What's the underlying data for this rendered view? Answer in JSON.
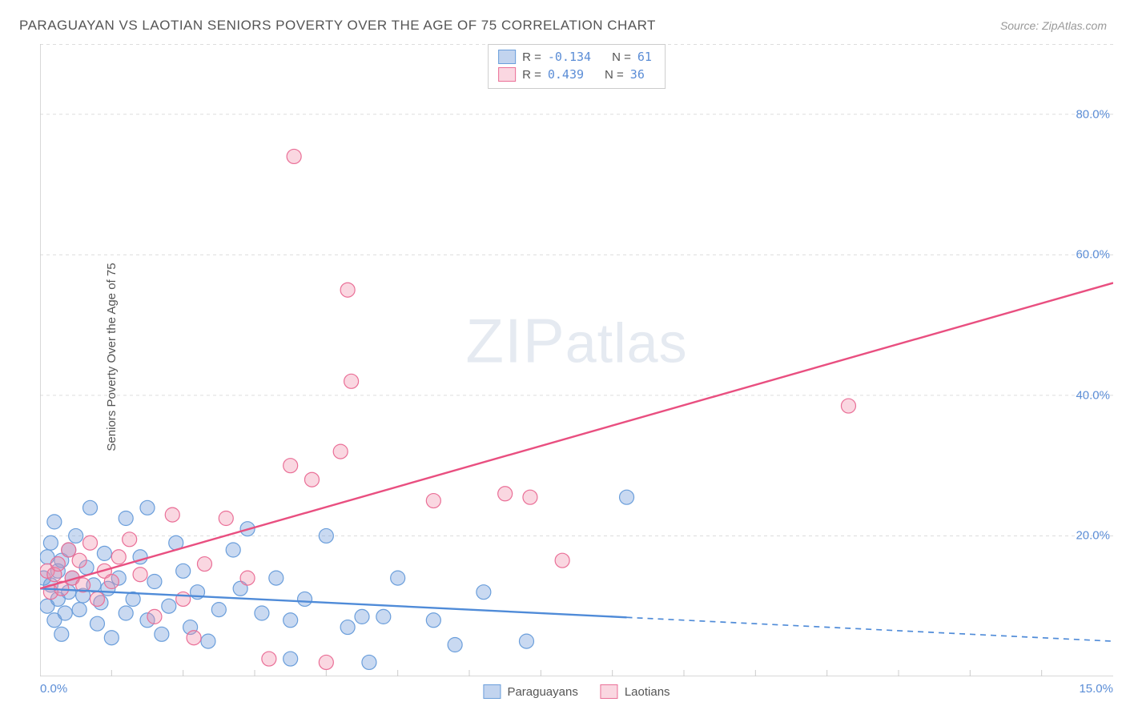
{
  "title": "PARAGUAYAN VS LAOTIAN SENIORS POVERTY OVER THE AGE OF 75 CORRELATION CHART",
  "source_prefix": "Source: ",
  "source_name": "ZipAtlas.com",
  "watermark_a": "ZIP",
  "watermark_b": "atlas",
  "ylabel": "Seniors Poverty Over the Age of 75",
  "chart": {
    "type": "scatter",
    "xlim": [
      0,
      15
    ],
    "ylim": [
      0,
      90
    ],
    "xtick_labels": {
      "0": "0.0%",
      "15": "15.0%"
    },
    "ytick_labels": {
      "20": "20.0%",
      "40": "40.0%",
      "60": "60.0%",
      "80": "80.0%"
    },
    "grid_color": "#dddddd",
    "grid_dash": "4 4",
    "axis_color": "#cccccc",
    "background_color": "#ffffff",
    "marker_radius": 9,
    "series": [
      {
        "name": "Paraguayans",
        "color_fill": "rgba(120,160,220,0.40)",
        "color_stroke": "#6a9edb",
        "r": "-0.134",
        "n": "61",
        "trend": {
          "y_at_x0": 12.5,
          "y_at_xmax": 5.0,
          "solid_until_x": 8.2,
          "stroke": "#4f8bd8",
          "width": 2.4
        },
        "points": [
          [
            0.05,
            14
          ],
          [
            0.1,
            17
          ],
          [
            0.1,
            10
          ],
          [
            0.15,
            13
          ],
          [
            0.15,
            19
          ],
          [
            0.2,
            22
          ],
          [
            0.2,
            8
          ],
          [
            0.25,
            11
          ],
          [
            0.25,
            15
          ],
          [
            0.3,
            16.5
          ],
          [
            0.3,
            6
          ],
          [
            0.35,
            9
          ],
          [
            0.4,
            12
          ],
          [
            0.4,
            18
          ],
          [
            0.45,
            14
          ],
          [
            0.5,
            20
          ],
          [
            0.55,
            9.5
          ],
          [
            0.6,
            11.5
          ],
          [
            0.65,
            15.5
          ],
          [
            0.7,
            24
          ],
          [
            0.75,
            13
          ],
          [
            0.8,
            7.5
          ],
          [
            0.85,
            10.5
          ],
          [
            0.9,
            17.5
          ],
          [
            0.95,
            12.5
          ],
          [
            1.0,
            5.5
          ],
          [
            1.1,
            14
          ],
          [
            1.2,
            9
          ],
          [
            1.2,
            22.5
          ],
          [
            1.3,
            11
          ],
          [
            1.4,
            17
          ],
          [
            1.5,
            24
          ],
          [
            1.5,
            8
          ],
          [
            1.6,
            13.5
          ],
          [
            1.7,
            6
          ],
          [
            1.8,
            10
          ],
          [
            1.9,
            19
          ],
          [
            2.0,
            15
          ],
          [
            2.1,
            7
          ],
          [
            2.2,
            12
          ],
          [
            2.35,
            5
          ],
          [
            2.5,
            9.5
          ],
          [
            2.7,
            18
          ],
          [
            2.9,
            21
          ],
          [
            2.8,
            12.5
          ],
          [
            3.1,
            9
          ],
          [
            3.3,
            14
          ],
          [
            3.5,
            2.5
          ],
          [
            3.5,
            8
          ],
          [
            3.7,
            11
          ],
          [
            4.0,
            20
          ],
          [
            4.3,
            7
          ],
          [
            4.5,
            8.5
          ],
          [
            4.6,
            2
          ],
          [
            4.8,
            8.5
          ],
          [
            5.0,
            14
          ],
          [
            5.5,
            8
          ],
          [
            5.8,
            4.5
          ],
          [
            6.2,
            12
          ],
          [
            6.8,
            5
          ],
          [
            8.2,
            25.5
          ]
        ]
      },
      {
        "name": "Laotians",
        "color_fill": "rgba(240,140,170,0.35)",
        "color_stroke": "#ea6f97",
        "r": "0.439",
        "n": "36",
        "trend": {
          "y_at_x0": 12.5,
          "y_at_xmax": 56.0,
          "solid_until_x": 15,
          "stroke": "#e94f80",
          "width": 2.4
        },
        "points": [
          [
            0.1,
            15
          ],
          [
            0.15,
            12
          ],
          [
            0.2,
            14.5
          ],
          [
            0.25,
            16
          ],
          [
            0.3,
            12.5
          ],
          [
            0.4,
            18
          ],
          [
            0.45,
            14
          ],
          [
            0.55,
            16.5
          ],
          [
            0.6,
            13
          ],
          [
            0.7,
            19
          ],
          [
            0.8,
            11
          ],
          [
            0.9,
            15
          ],
          [
            1.0,
            13.5
          ],
          [
            1.1,
            17
          ],
          [
            1.25,
            19.5
          ],
          [
            1.4,
            14.5
          ],
          [
            1.6,
            8.5
          ],
          [
            1.85,
            23
          ],
          [
            2.0,
            11
          ],
          [
            2.15,
            5.5
          ],
          [
            2.3,
            16
          ],
          [
            2.6,
            22.5
          ],
          [
            2.9,
            14
          ],
          [
            3.2,
            2.5
          ],
          [
            3.5,
            30
          ],
          [
            3.55,
            74
          ],
          [
            3.8,
            28
          ],
          [
            4.0,
            2.0
          ],
          [
            4.2,
            32
          ],
          [
            4.3,
            55
          ],
          [
            4.35,
            42
          ],
          [
            5.5,
            25
          ],
          [
            6.5,
            26
          ],
          [
            6.85,
            25.5
          ],
          [
            7.3,
            16.5
          ],
          [
            11.3,
            38.5
          ]
        ]
      }
    ]
  },
  "stat_legend": {
    "r_label": "R =",
    "n_label": "N ="
  },
  "bottom_legend": {
    "label_a": "Paraguayans",
    "label_b": "Laotians"
  }
}
